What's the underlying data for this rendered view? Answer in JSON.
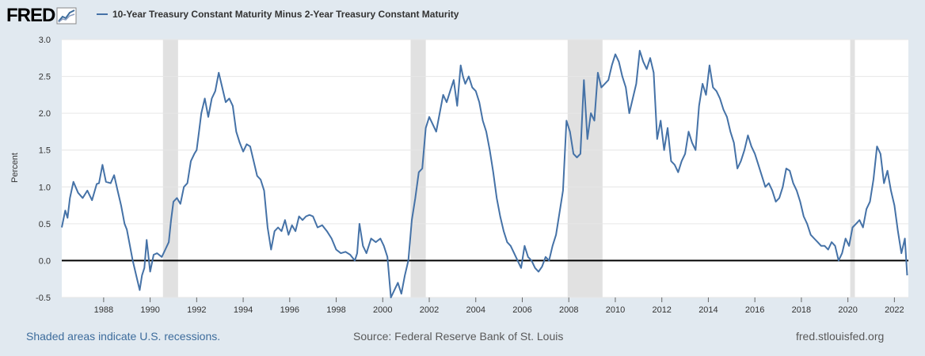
{
  "header": {
    "logo_text": "FRED",
    "series_title": "10-Year Treasury Constant Maturity Minus 2-Year Treasury Constant Maturity"
  },
  "footer": {
    "recession_note": "Shaded areas indicate U.S. recessions.",
    "source": "Source: Federal Reserve Bank of St. Louis",
    "site": "fred.stlouisfed.org"
  },
  "colors": {
    "line": "#4572a7",
    "recession": "#e1e1e1",
    "background": "#e1e9f0",
    "zero_line": "#000000"
  },
  "chart_data": {
    "type": "line",
    "title": "",
    "ylabel": "Percent",
    "xlabel": "",
    "ylim": [
      -0.5,
      3.0
    ],
    "xlim": [
      1986.2,
      2022.6
    ],
    "yticks": [
      -0.5,
      0.0,
      0.5,
      1.0,
      1.5,
      2.0,
      2.5,
      3.0
    ],
    "ytick_labels": [
      "-0.5",
      "0.0",
      "0.5",
      "1.0",
      "1.5",
      "2.0",
      "2.5",
      "3.0"
    ],
    "xticks": [
      1988,
      1990,
      1992,
      1994,
      1996,
      1998,
      2000,
      2002,
      2004,
      2006,
      2008,
      2010,
      2012,
      2014,
      2016,
      2018,
      2020,
      2022
    ],
    "grid": "horizontal",
    "legend_placement": "top-left",
    "reference_line": 0.0,
    "recessions": [
      [
        1990.55,
        1991.2
      ],
      [
        2001.2,
        2001.85
      ],
      [
        2007.95,
        2009.45
      ],
      [
        2020.1,
        2020.3
      ]
    ],
    "series": [
      {
        "name": "10-Year Treasury Constant Maturity Minus 2-Year Treasury Constant Maturity",
        "x": [
          1986.2,
          1986.35,
          1986.45,
          1986.55,
          1986.7,
          1986.9,
          1987.1,
          1987.3,
          1987.5,
          1987.7,
          1987.8,
          1987.95,
          1988.1,
          1988.3,
          1988.45,
          1988.6,
          1988.75,
          1988.9,
          1989.0,
          1989.1,
          1989.25,
          1989.4,
          1989.55,
          1989.65,
          1989.75,
          1989.85,
          1990.0,
          1990.15,
          1990.3,
          1990.5,
          1990.65,
          1990.8,
          1990.9,
          1991.0,
          1991.15,
          1991.3,
          1991.45,
          1991.6,
          1991.75,
          1991.9,
          1992.0,
          1992.1,
          1992.2,
          1992.35,
          1992.5,
          1992.65,
          1992.8,
          1992.95,
          1993.1,
          1993.25,
          1993.4,
          1993.55,
          1993.7,
          1993.85,
          1994.0,
          1994.15,
          1994.3,
          1994.45,
          1994.6,
          1994.75,
          1994.9,
          1995.05,
          1995.2,
          1995.35,
          1995.5,
          1995.65,
          1995.8,
          1995.95,
          1996.1,
          1996.25,
          1996.4,
          1996.55,
          1996.7,
          1996.85,
          1997.0,
          1997.2,
          1997.4,
          1997.6,
          1997.8,
          1998.0,
          1998.2,
          1998.4,
          1998.6,
          1998.8,
          1998.9,
          1999.0,
          1999.15,
          1999.3,
          1999.5,
          1999.7,
          1999.9,
          2000.05,
          2000.2,
          2000.35,
          2000.5,
          2000.65,
          2000.8,
          2000.95,
          2001.1,
          2001.25,
          2001.4,
          2001.55,
          2001.7,
          2001.85,
          2002.0,
          2002.15,
          2002.3,
          2002.45,
          2002.6,
          2002.75,
          2002.9,
          2003.05,
          2003.2,
          2003.35,
          2003.45,
          2003.55,
          2003.7,
          2003.85,
          2004.0,
          2004.15,
          2004.3,
          2004.45,
          2004.6,
          2004.75,
          2004.9,
          2005.05,
          2005.2,
          2005.35,
          2005.5,
          2005.65,
          2005.8,
          2005.95,
          2006.1,
          2006.25,
          2006.4,
          2006.55,
          2006.7,
          2006.85,
          2007.0,
          2007.15,
          2007.3,
          2007.45,
          2007.6,
          2007.75,
          2007.9,
          2008.05,
          2008.2,
          2008.35,
          2008.5,
          2008.65,
          2008.8,
          2008.95,
          2009.1,
          2009.25,
          2009.4,
          2009.55,
          2009.7,
          2009.85,
          2010.0,
          2010.15,
          2010.3,
          2010.45,
          2010.6,
          2010.75,
          2010.9,
          2011.05,
          2011.2,
          2011.35,
          2011.5,
          2011.65,
          2011.8,
          2011.95,
          2012.1,
          2012.25,
          2012.4,
          2012.55,
          2012.7,
          2012.85,
          2013.0,
          2013.15,
          2013.3,
          2013.45,
          2013.6,
          2013.75,
          2013.9,
          2014.05,
          2014.2,
          2014.35,
          2014.5,
          2014.65,
          2014.8,
          2014.95,
          2015.1,
          2015.25,
          2015.4,
          2015.55,
          2015.7,
          2015.85,
          2016.0,
          2016.15,
          2016.3,
          2016.45,
          2016.6,
          2016.75,
          2016.9,
          2017.05,
          2017.2,
          2017.35,
          2017.5,
          2017.65,
          2017.8,
          2017.95,
          2018.1,
          2018.25,
          2018.4,
          2018.55,
          2018.7,
          2018.85,
          2019.0,
          2019.15,
          2019.3,
          2019.45,
          2019.6,
          2019.75,
          2019.9,
          2020.05,
          2020.2,
          2020.35,
          2020.5,
          2020.65,
          2020.8,
          2020.95,
          2021.1,
          2021.25,
          2021.4,
          2021.55,
          2021.7,
          2021.85,
          2022.0,
          2022.15,
          2022.3,
          2022.45,
          2022.55
        ],
        "values": [
          0.45,
          0.68,
          0.58,
          0.85,
          1.07,
          0.92,
          0.85,
          0.95,
          0.82,
          1.04,
          1.05,
          1.3,
          1.07,
          1.05,
          1.16,
          0.95,
          0.75,
          0.5,
          0.42,
          0.25,
          0.0,
          -0.2,
          -0.4,
          -0.2,
          -0.1,
          0.28,
          -0.15,
          0.08,
          0.1,
          0.05,
          0.15,
          0.25,
          0.55,
          0.8,
          0.85,
          0.77,
          1.0,
          1.05,
          1.35,
          1.45,
          1.5,
          1.75,
          2.0,
          2.2,
          1.95,
          2.2,
          2.3,
          2.55,
          2.35,
          2.15,
          2.2,
          2.1,
          1.75,
          1.6,
          1.48,
          1.58,
          1.55,
          1.35,
          1.15,
          1.1,
          0.95,
          0.45,
          0.15,
          0.4,
          0.45,
          0.4,
          0.55,
          0.35,
          0.48,
          0.4,
          0.6,
          0.55,
          0.6,
          0.62,
          0.6,
          0.45,
          0.48,
          0.4,
          0.3,
          0.15,
          0.1,
          0.12,
          0.08,
          0.0,
          0.1,
          0.5,
          0.2,
          0.1,
          0.3,
          0.25,
          0.3,
          0.2,
          0.05,
          -0.5,
          -0.4,
          -0.3,
          -0.45,
          -0.2,
          0.0,
          0.55,
          0.85,
          1.2,
          1.25,
          1.8,
          1.95,
          1.85,
          1.75,
          2.0,
          2.25,
          2.15,
          2.3,
          2.45,
          2.1,
          2.65,
          2.5,
          2.4,
          2.5,
          2.35,
          2.3,
          2.15,
          1.9,
          1.75,
          1.5,
          1.2,
          0.85,
          0.6,
          0.4,
          0.25,
          0.2,
          0.1,
          0.0,
          -0.1,
          0.2,
          0.05,
          0.0,
          -0.1,
          -0.15,
          -0.08,
          0.05,
          0.0,
          0.2,
          0.35,
          0.65,
          0.95,
          1.9,
          1.75,
          1.45,
          1.4,
          1.45,
          2.45,
          1.65,
          2.0,
          1.9,
          2.55,
          2.35,
          2.4,
          2.45,
          2.65,
          2.8,
          2.7,
          2.5,
          2.35,
          2.0,
          2.2,
          2.4,
          2.85,
          2.7,
          2.6,
          2.75,
          2.55,
          1.65,
          1.9,
          1.5,
          1.8,
          1.35,
          1.3,
          1.2,
          1.35,
          1.45,
          1.75,
          1.6,
          1.5,
          2.1,
          2.4,
          2.25,
          2.65,
          2.35,
          2.3,
          2.2,
          2.05,
          1.95,
          1.75,
          1.6,
          1.25,
          1.35,
          1.5,
          1.7,
          1.55,
          1.45,
          1.3,
          1.15,
          1.0,
          1.05,
          0.95,
          0.8,
          0.85,
          1.0,
          1.25,
          1.22,
          1.05,
          0.95,
          0.8,
          0.6,
          0.5,
          0.35,
          0.3,
          0.25,
          0.2,
          0.2,
          0.15,
          0.25,
          0.2,
          0.0,
          0.1,
          0.3,
          0.2,
          0.45,
          0.5,
          0.55,
          0.45,
          0.7,
          0.8,
          1.1,
          1.55,
          1.45,
          1.05,
          1.22,
          0.95,
          0.75,
          0.4,
          0.1,
          0.3,
          -0.2
        ]
      }
    ]
  }
}
